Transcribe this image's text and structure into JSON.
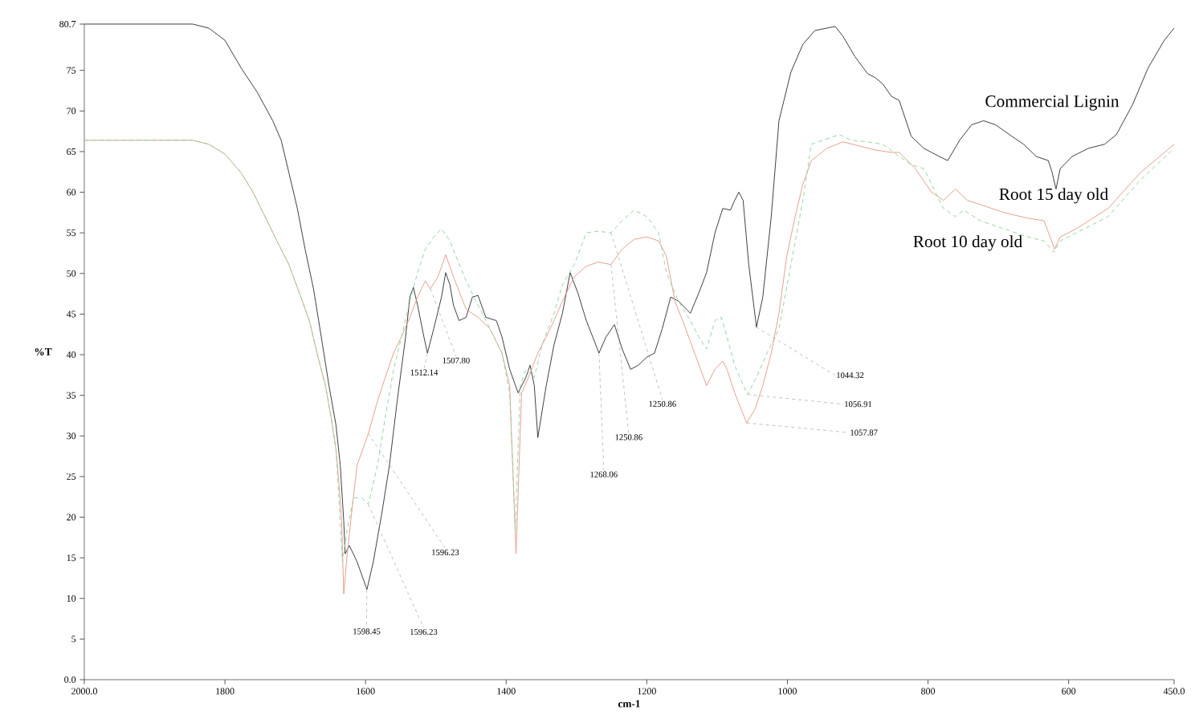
{
  "chart_data": {
    "type": "line",
    "xlabel": "cm-1",
    "ylabel": "%T",
    "xlim": [
      2000,
      450
    ],
    "ylim": [
      0,
      80.7
    ],
    "xticks": [
      {
        "value": 2000,
        "label": "2000.0"
      },
      1800,
      1600,
      1400,
      1200,
      1000,
      800,
      600,
      {
        "value": 450,
        "label": "450.0"
      }
    ],
    "yticks": [
      {
        "value": 0,
        "label": "0.0"
      },
      5,
      10,
      15,
      20,
      25,
      30,
      35,
      40,
      45,
      50,
      55,
      60,
      65,
      70,
      75,
      {
        "value": 80.7,
        "label": "80.7"
      }
    ],
    "series": [
      {
        "name": "Commercial Lignin",
        "color": "#333333",
        "x": [
          2000,
          1846,
          1823,
          1800,
          1777,
          1754,
          1732,
          1720,
          1709,
          1697,
          1686,
          1674,
          1663,
          1652,
          1642,
          1636,
          1631,
          1629,
          1623,
          1612,
          1598,
          1589,
          1577,
          1566,
          1555,
          1543,
          1537,
          1532,
          1526,
          1517,
          1512,
          1503,
          1492,
          1486,
          1480,
          1475,
          1467,
          1457,
          1448,
          1440,
          1429,
          1414,
          1406,
          1395,
          1383,
          1372,
          1366,
          1360,
          1355,
          1343,
          1332,
          1320,
          1309,
          1298,
          1286,
          1268,
          1258,
          1246,
          1235,
          1223,
          1212,
          1200,
          1189,
          1178,
          1166,
          1155,
          1138,
          1126,
          1115,
          1103,
          1092,
          1081,
          1075,
          1069,
          1063,
          1055,
          1044,
          1035,
          1023,
          1012,
          995,
          978,
          961,
          944,
          932,
          921,
          904,
          886,
          875,
          864,
          852,
          841,
          824,
          806,
          795,
          784,
          772,
          755,
          738,
          721,
          704,
          681,
          664,
          646,
          629,
          624,
          618,
          612,
          595,
          572,
          549,
          532,
          509,
          487,
          464,
          450
        ],
        "values": [
          80.7,
          80.7,
          80.2,
          78.7,
          75.3,
          72.3,
          68.8,
          66.4,
          62.4,
          58.0,
          53.0,
          48.1,
          42.2,
          36.2,
          31.3,
          26.4,
          19.5,
          15.5,
          16.5,
          14.5,
          11.1,
          14.5,
          20.4,
          26.4,
          34.3,
          42.2,
          47.1,
          48.3,
          46.1,
          42.2,
          40.2,
          43.2,
          47.1,
          50.1,
          48.6,
          46.1,
          44.2,
          44.6,
          47.1,
          47.3,
          44.6,
          44.2,
          42.2,
          38.2,
          35.3,
          37.2,
          38.7,
          36.2,
          29.8,
          36.2,
          41.2,
          45.1,
          50.1,
          47.6,
          44.2,
          40.2,
          42.2,
          43.7,
          40.7,
          38.2,
          38.7,
          39.7,
          40.2,
          43.2,
          47.1,
          46.6,
          45.1,
          47.6,
          50.1,
          55.0,
          58.0,
          57.8,
          59.0,
          60.0,
          59.0,
          51.1,
          43.4,
          47.1,
          57.0,
          68.8,
          74.8,
          78.2,
          79.9,
          80.2,
          80.4,
          79.2,
          76.7,
          74.6,
          74.1,
          73.3,
          71.8,
          71.3,
          66.9,
          65.4,
          64.9,
          64.4,
          63.9,
          66.4,
          68.3,
          68.8,
          68.3,
          66.9,
          65.9,
          64.4,
          63.9,
          62.6,
          60.4,
          62.9,
          64.4,
          65.4,
          65.9,
          67.1,
          70.8,
          75.3,
          78.7,
          80.2
        ]
      },
      {
        "name": "Root 15 day old",
        "color": "#e39a86",
        "x": [
          2000,
          1846,
          1823,
          1800,
          1777,
          1760,
          1743,
          1726,
          1709,
          1692,
          1680,
          1669,
          1657,
          1649,
          1642,
          1638,
          1634,
          1631,
          1626,
          1620,
          1612,
          1596,
          1583,
          1572,
          1560,
          1549,
          1537,
          1526,
          1515,
          1508,
          1497,
          1486,
          1475,
          1457,
          1440,
          1423,
          1406,
          1395,
          1386,
          1378,
          1366,
          1355,
          1343,
          1332,
          1320,
          1303,
          1286,
          1269,
          1251,
          1235,
          1218,
          1200,
          1183,
          1172,
          1160,
          1149,
          1132,
          1115,
          1103,
          1092,
          1086,
          1075,
          1058,
          1046,
          1035,
          1023,
          1012,
          1001,
          989,
          978,
          966,
          944,
          921,
          898,
          875,
          852,
          841,
          818,
          795,
          778,
          761,
          744,
          726,
          692,
          658,
          635,
          620,
          612,
          589,
          544,
          498,
          450
        ],
        "values": [
          66.4,
          66.4,
          65.9,
          64.7,
          62.4,
          60.0,
          57.0,
          54.0,
          51.1,
          47.1,
          44.2,
          40.2,
          36.2,
          32.3,
          28.3,
          24.4,
          19.5,
          10.6,
          15.5,
          20.4,
          26.4,
          30.3,
          34.3,
          37.2,
          40.2,
          42.2,
          44.6,
          47.1,
          49.1,
          48.1,
          49.6,
          52.3,
          49.6,
          45.6,
          44.6,
          43.2,
          40.2,
          36.2,
          15.5,
          35.3,
          37.7,
          40.2,
          42.2,
          44.2,
          46.6,
          49.6,
          50.9,
          51.4,
          51.1,
          53.0,
          54.2,
          54.5,
          54.0,
          52.1,
          46.6,
          44.2,
          40.2,
          36.2,
          38.2,
          39.2,
          38.2,
          35.3,
          31.6,
          33.3,
          36.2,
          40.2,
          45.1,
          52.1,
          57.0,
          61.0,
          63.9,
          65.4,
          66.2,
          65.7,
          65.2,
          64.9,
          64.9,
          62.9,
          60.0,
          59.0,
          60.4,
          59.0,
          58.5,
          57.5,
          56.8,
          56.5,
          53.0,
          54.5,
          55.5,
          58.0,
          62.4,
          65.9
        ]
      },
      {
        "name": "Root 10 day old",
        "color": "#8ed49a",
        "line_style": "dashed",
        "x": [
          2000,
          1846,
          1823,
          1800,
          1777,
          1760,
          1743,
          1726,
          1709,
          1692,
          1680,
          1669,
          1657,
          1649,
          1642,
          1638,
          1633,
          1626,
          1617,
          1606,
          1596,
          1583,
          1572,
          1560,
          1549,
          1537,
          1526,
          1515,
          1503,
          1492,
          1480,
          1469,
          1457,
          1440,
          1423,
          1406,
          1395,
          1387,
          1380,
          1372,
          1360,
          1349,
          1332,
          1320,
          1303,
          1286,
          1269,
          1251,
          1235,
          1218,
          1200,
          1183,
          1172,
          1155,
          1138,
          1126,
          1115,
          1103,
          1094,
          1086,
          1075,
          1057,
          1044,
          1029,
          1012,
          995,
          978,
          966,
          949,
          926,
          909,
          886,
          864,
          841,
          824,
          806,
          778,
          761,
          749,
          726,
          692,
          658,
          635,
          621,
          612,
          589,
          544,
          498,
          450
        ],
        "values": [
          66.4,
          66.4,
          65.9,
          64.7,
          62.4,
          60.0,
          57.0,
          54.0,
          51.1,
          47.1,
          44.2,
          40.2,
          36.2,
          32.3,
          28.3,
          22.4,
          14.5,
          18.5,
          22.4,
          22.4,
          21.6,
          26.4,
          32.3,
          38.2,
          42.2,
          46.6,
          50.1,
          53.0,
          54.5,
          55.5,
          54.0,
          51.6,
          49.1,
          46.1,
          43.2,
          40.2,
          35.3,
          18.5,
          36.2,
          38.2,
          37.2,
          41.2,
          45.1,
          48.6,
          51.1,
          55.0,
          55.2,
          55.0,
          56.5,
          57.8,
          57.0,
          55.0,
          50.1,
          46.6,
          44.2,
          42.2,
          40.7,
          44.2,
          44.6,
          42.2,
          38.7,
          35.1,
          37.2,
          40.2,
          43.2,
          51.1,
          59.0,
          65.9,
          66.4,
          67.1,
          66.4,
          66.2,
          65.9,
          64.4,
          63.4,
          62.9,
          58.0,
          57.0,
          57.8,
          56.5,
          55.5,
          54.5,
          54.0,
          52.6,
          54.0,
          55.0,
          57.0,
          61.5,
          65.4
        ]
      }
    ],
    "annotations": [
      {
        "text": "1598.45",
        "x": 1598.45,
        "y": 11.1
      },
      {
        "text": "1596.23",
        "x": 1596.23,
        "y": 21.6
      },
      {
        "text": "1596.23",
        "x": 1596.23,
        "y": 30.3
      },
      {
        "text": "1512.14",
        "x": 1512.14,
        "y": 40.2
      },
      {
        "text": "1507.80",
        "x": 1507.8,
        "y": 48.1
      },
      {
        "text": "1268.06",
        "x": 1268.06,
        "y": 40.2
      },
      {
        "text": "1250.86",
        "x": 1250.86,
        "y": 55.0
      },
      {
        "text": "1250.86",
        "x": 1250.86,
        "y": 51.1
      },
      {
        "text": "1044.32",
        "x": 1044.32,
        "y": 43.4
      },
      {
        "text": "1056.91",
        "x": 1056.91,
        "y": 35.1
      },
      {
        "text": "1057.87",
        "x": 1057.87,
        "y": 31.6
      }
    ]
  }
}
